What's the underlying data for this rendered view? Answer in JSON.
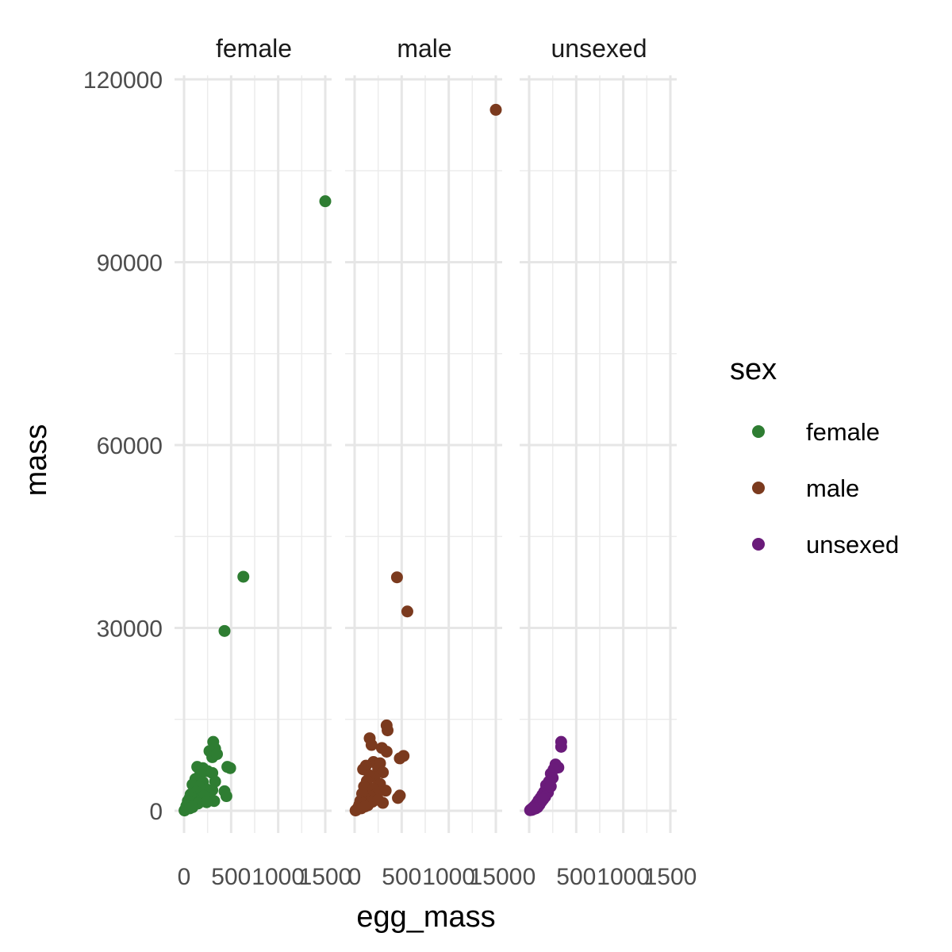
{
  "chart_data": {
    "type": "scatter",
    "xlabel": "egg_mass",
    "ylabel": "mass",
    "xlim": [
      -80,
      1560
    ],
    "ylim": [
      -5500,
      120000
    ],
    "x_ticks": [
      0,
      500,
      1000,
      1500
    ],
    "x_tick_labels": [
      "0",
      "500",
      "1000",
      "1500"
    ],
    "y_ticks": [
      0,
      30000,
      60000,
      90000,
      120000
    ],
    "y_tick_labels": [
      "0",
      "30000",
      "60000",
      "90000",
      "120000"
    ],
    "grid": true,
    "facet_by": "sex",
    "legend": {
      "title": "sex",
      "position": "right",
      "entries": [
        {
          "label": "female",
          "color": "#2e7d32"
        },
        {
          "label": "male",
          "color": "#7b3a1e"
        },
        {
          "label": "unsexed",
          "color": "#6a1b7a"
        }
      ]
    },
    "panels": [
      {
        "strip": "female",
        "color": "#2e7d32",
        "points": [
          [
            1500,
            100000
          ],
          [
            630,
            38400
          ],
          [
            430,
            29500
          ],
          [
            310,
            11300
          ],
          [
            330,
            10200
          ],
          [
            270,
            9800
          ],
          [
            300,
            8800
          ],
          [
            350,
            9300
          ],
          [
            460,
            7200
          ],
          [
            490,
            7000
          ],
          [
            430,
            3200
          ],
          [
            450,
            2400
          ],
          [
            140,
            7200
          ],
          [
            200,
            7000
          ],
          [
            250,
            6500
          ],
          [
            300,
            6200
          ],
          [
            330,
            4800
          ],
          [
            300,
            3400
          ],
          [
            270,
            2600
          ],
          [
            320,
            1600
          ],
          [
            170,
            5900
          ],
          [
            120,
            5200
          ],
          [
            90,
            4300
          ],
          [
            200,
            4700
          ],
          [
            230,
            3600
          ],
          [
            160,
            3900
          ],
          [
            130,
            3100
          ],
          [
            210,
            2400
          ],
          [
            180,
            1700
          ],
          [
            110,
            1900
          ],
          [
            70,
            2700
          ],
          [
            60,
            2100
          ],
          [
            80,
            1300
          ],
          [
            50,
            900
          ],
          [
            40,
            1600
          ],
          [
            30,
            500
          ],
          [
            20,
            300
          ],
          [
            10,
            150
          ],
          [
            5,
            50
          ],
          [
            25,
            800
          ],
          [
            100,
            900
          ],
          [
            150,
            1200
          ],
          [
            240,
            1400
          ],
          [
            60,
            400
          ],
          [
            90,
            600
          ]
        ]
      },
      {
        "strip": "male",
        "color": "#7b3a1e",
        "points": [
          [
            1500,
            115000
          ],
          [
            450,
            38300
          ],
          [
            560,
            32700
          ],
          [
            340,
            14000
          ],
          [
            350,
            13200
          ],
          [
            160,
            11900
          ],
          [
            180,
            10800
          ],
          [
            290,
            10300
          ],
          [
            340,
            9700
          ],
          [
            480,
            8600
          ],
          [
            520,
            9000
          ],
          [
            200,
            8000
          ],
          [
            270,
            7800
          ],
          [
            250,
            6900
          ],
          [
            120,
            7400
          ],
          [
            90,
            6800
          ],
          [
            300,
            6300
          ],
          [
            210,
            5500
          ],
          [
            160,
            5800
          ],
          [
            270,
            4400
          ],
          [
            330,
            3300
          ],
          [
            480,
            2500
          ],
          [
            460,
            2100
          ],
          [
            300,
            1300
          ],
          [
            130,
            4900
          ],
          [
            100,
            4000
          ],
          [
            200,
            3600
          ],
          [
            230,
            2700
          ],
          [
            160,
            2400
          ],
          [
            120,
            1900
          ],
          [
            80,
            2800
          ],
          [
            60,
            1600
          ],
          [
            50,
            1000
          ],
          [
            40,
            600
          ],
          [
            30,
            300
          ],
          [
            20,
            150
          ],
          [
            10,
            50
          ],
          [
            90,
            1200
          ],
          [
            140,
            900
          ],
          [
            190,
            1500
          ],
          [
            250,
            1800
          ],
          [
            70,
            400
          ],
          [
            110,
            700
          ]
        ]
      },
      {
        "strip": "unsexed",
        "color": "#6a1b7a",
        "points": [
          [
            340,
            11300
          ],
          [
            340,
            10500
          ],
          [
            280,
            7600
          ],
          [
            310,
            7100
          ],
          [
            260,
            6800
          ],
          [
            230,
            6100
          ],
          [
            250,
            5400
          ],
          [
            210,
            4800
          ],
          [
            180,
            4200
          ],
          [
            190,
            3600
          ],
          [
            160,
            3100
          ],
          [
            140,
            2600
          ],
          [
            120,
            2100
          ],
          [
            100,
            1700
          ],
          [
            80,
            1200
          ],
          [
            60,
            800
          ],
          [
            40,
            500
          ],
          [
            20,
            250
          ],
          [
            10,
            100
          ],
          [
            200,
            3000
          ],
          [
            170,
            2300
          ],
          [
            130,
            1500
          ],
          [
            110,
            1000
          ],
          [
            90,
            600
          ],
          [
            70,
            400
          ],
          [
            230,
            4000
          ],
          [
            150,
            1900
          ],
          [
            50,
            300
          ],
          [
            30,
            150
          ]
        ]
      }
    ]
  }
}
